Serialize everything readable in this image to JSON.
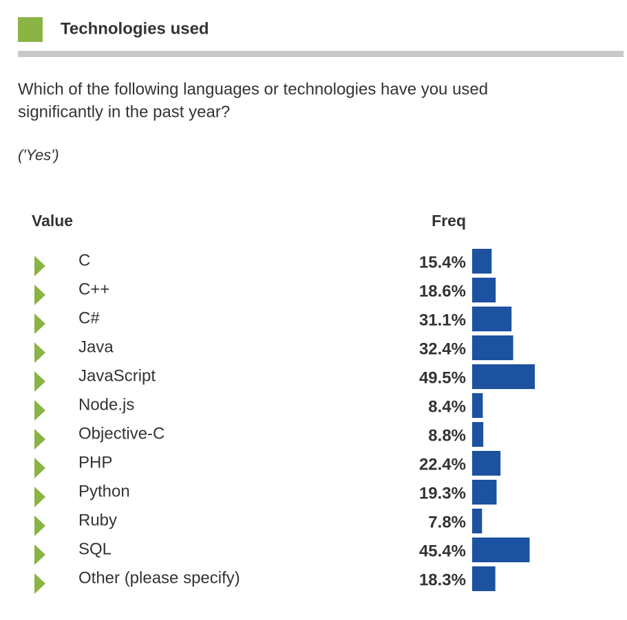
{
  "header": {
    "title": "Technologies used"
  },
  "question": {
    "lines": [
      "Which of the following languages or technologies have you used",
      "significantly in the past year?"
    ],
    "note": "('Yes')"
  },
  "chart_data": {
    "type": "bar",
    "orientation": "horizontal",
    "color": "#1c52a0",
    "column_headers": [
      "Value",
      "Freq"
    ],
    "categories": [
      "C",
      "C++",
      "C#",
      "Java",
      "JavaScript",
      "Node.js",
      "Objective-C",
      "PHP",
      "Python",
      "Ruby",
      "SQL",
      "Other (please specify)"
    ],
    "values": [
      15.4,
      18.6,
      31.1,
      32.4,
      49.5,
      8.4,
      8.8,
      22.4,
      19.3,
      7.8,
      45.4,
      18.3
    ],
    "value_labels": [
      "15.4%",
      "18.6%",
      "31.1%",
      "32.4%",
      "49.5%",
      "8.4%",
      "8.8%",
      "22.4%",
      "19.3%",
      "7.8%",
      "45.4%",
      "18.3%"
    ]
  }
}
